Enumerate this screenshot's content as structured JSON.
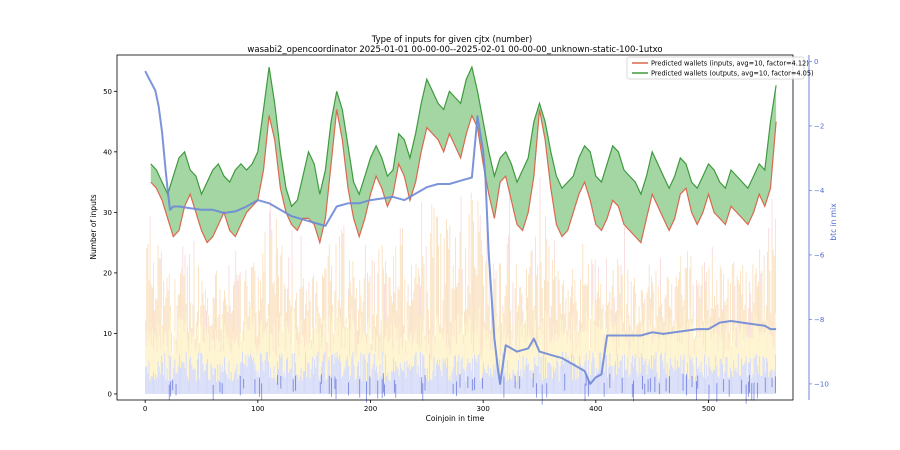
{
  "chart_data": {
    "type": "line",
    "title": "Type of inputs for given cjtx (number)",
    "subtitle": "wasabi2_opencoordinator 2025-01-01 00-00-00--2025-02-01 00-00-00_unknown-static-100-1utxo",
    "xlabel": "Coinjoin in time",
    "ylabel": "Number of inputs",
    "ylabel_right": "btc in mix",
    "xlim": [
      -25,
      575
    ],
    "ylim": [
      -1,
      56
    ],
    "ylim_right": [
      -10.5,
      0.2
    ],
    "xticks": [
      0,
      100,
      200,
      300,
      400,
      500
    ],
    "yticks": [
      0,
      10,
      20,
      30,
      40,
      50
    ],
    "yticks_right": [
      0,
      -2,
      -4,
      -6,
      -8,
      -10
    ],
    "right_tick_labels": [
      "0",
      "−2",
      "−4",
      "−6",
      "−8",
      "−10"
    ],
    "legend_position": "top-right",
    "colors": {
      "inputs": "#d9694f",
      "outputs": "#3f9a3f",
      "fill": "#58b458",
      "btc": "#6d88d6",
      "orange_bars": "#f6c98c",
      "yellow_bars": "#fbeaa0",
      "blue_bars": "#9aa6ee",
      "pink_bars": "#f2b7bd"
    },
    "series": [
      {
        "name": "Predicted wallets (inputs, avg=10, factor=4.12)",
        "x": [
          5,
          10,
          15,
          20,
          25,
          30,
          35,
          40,
          45,
          50,
          55,
          60,
          65,
          70,
          75,
          80,
          85,
          90,
          95,
          100,
          105,
          110,
          115,
          120,
          125,
          130,
          135,
          140,
          145,
          150,
          155,
          160,
          165,
          170,
          175,
          180,
          185,
          190,
          195,
          200,
          205,
          210,
          215,
          220,
          225,
          230,
          235,
          240,
          245,
          250,
          255,
          260,
          265,
          270,
          275,
          280,
          285,
          290,
          295,
          300,
          305,
          310,
          315,
          320,
          325,
          330,
          335,
          340,
          345,
          350,
          355,
          360,
          365,
          370,
          375,
          380,
          385,
          390,
          395,
          400,
          405,
          410,
          415,
          420,
          425,
          430,
          435,
          440,
          445,
          450,
          455,
          460,
          465,
          470,
          475,
          480,
          485,
          490,
          495,
          500,
          505,
          510,
          515,
          520,
          525,
          530,
          535,
          540,
          545,
          550,
          555,
          560
        ],
        "values": [
          35,
          34,
          32,
          29,
          26,
          27,
          31,
          33,
          30,
          27,
          25,
          26,
          28,
          30,
          27,
          26,
          28,
          30,
          31,
          32,
          37,
          46,
          42,
          34,
          30,
          28,
          27,
          29,
          29,
          28,
          25,
          29,
          38,
          47,
          42,
          34,
          29,
          26,
          29,
          33,
          36,
          34,
          31,
          33,
          38,
          36,
          32,
          35,
          40,
          44,
          43,
          42,
          40,
          43,
          41,
          39,
          43,
          46,
          44,
          38,
          33,
          29,
          35,
          36,
          32,
          28,
          27,
          30,
          36,
          47,
          42,
          34,
          28,
          26,
          27,
          30,
          33,
          35,
          32,
          28,
          27,
          29,
          32,
          31,
          28,
          27,
          26,
          25,
          29,
          33,
          31,
          29,
          27,
          29,
          33,
          34,
          30,
          28,
          30,
          33,
          30,
          29,
          28,
          31,
          30,
          29,
          28,
          30,
          33,
          31,
          34,
          45
        ]
      },
      {
        "name": "Predicted wallets (outputs, avg=10, factor=4.05)",
        "x": [
          5,
          10,
          15,
          20,
          25,
          30,
          35,
          40,
          45,
          50,
          55,
          60,
          65,
          70,
          75,
          80,
          85,
          90,
          95,
          100,
          105,
          110,
          115,
          120,
          125,
          130,
          135,
          140,
          145,
          150,
          155,
          160,
          165,
          170,
          175,
          180,
          185,
          190,
          195,
          200,
          205,
          210,
          215,
          220,
          225,
          230,
          235,
          240,
          245,
          250,
          255,
          260,
          265,
          270,
          275,
          280,
          285,
          290,
          295,
          300,
          305,
          310,
          315,
          320,
          325,
          330,
          335,
          340,
          345,
          350,
          355,
          360,
          365,
          370,
          375,
          380,
          385,
          390,
          395,
          400,
          405,
          410,
          415,
          420,
          425,
          430,
          435,
          440,
          445,
          450,
          455,
          460,
          465,
          470,
          475,
          480,
          485,
          490,
          495,
          500,
          505,
          510,
          515,
          520,
          525,
          530,
          535,
          540,
          545,
          550,
          555,
          560
        ],
        "values": [
          38,
          37,
          35,
          33,
          36,
          39,
          40,
          37,
          36,
          33,
          35,
          37,
          38,
          36,
          35,
          37,
          38,
          37,
          38,
          40,
          47,
          54,
          48,
          40,
          34,
          31,
          32,
          36,
          40,
          38,
          33,
          37,
          45,
          50,
          47,
          41,
          35,
          33,
          36,
          39,
          41,
          39,
          36,
          37,
          43,
          42,
          39,
          43,
          48,
          52,
          50,
          48,
          47,
          50,
          49,
          48,
          52,
          54,
          50,
          45,
          40,
          36,
          39,
          40,
          38,
          35,
          37,
          39,
          45,
          48,
          45,
          40,
          36,
          34,
          35,
          36,
          39,
          41,
          40,
          36,
          35,
          38,
          41,
          40,
          37,
          36,
          35,
          33,
          36,
          40,
          38,
          36,
          34,
          36,
          39,
          38,
          35,
          34,
          36,
          38,
          37,
          35,
          34,
          37,
          36,
          35,
          34,
          36,
          38,
          37,
          45,
          51
        ]
      },
      {
        "name": "btc in mix",
        "x": [
          0,
          3,
          6,
          9,
          12,
          15,
          18,
          20,
          22,
          25,
          30,
          40,
          50,
          60,
          70,
          80,
          90,
          100,
          110,
          120,
          130,
          140,
          150,
          160,
          170,
          180,
          190,
          200,
          210,
          220,
          230,
          240,
          250,
          260,
          270,
          280,
          290,
          295,
          300,
          302,
          305,
          310,
          313,
          315,
          320,
          330,
          340,
          345,
          350,
          360,
          370,
          380,
          390,
          395,
          400,
          405,
          410,
          420,
          430,
          440,
          450,
          460,
          470,
          480,
          490,
          500,
          510,
          520,
          530,
          540,
          550,
          555,
          560
        ],
        "values": [
          -0.3,
          -0.5,
          -0.7,
          -0.9,
          -1.4,
          -2.2,
          -3.3,
          -4.0,
          -4.6,
          -4.5,
          -4.5,
          -4.55,
          -4.6,
          -4.6,
          -4.7,
          -4.65,
          -4.5,
          -4.3,
          -4.4,
          -4.6,
          -4.8,
          -4.9,
          -5.0,
          -5.1,
          -4.5,
          -4.4,
          -4.4,
          -4.3,
          -4.25,
          -4.2,
          -4.3,
          -4.1,
          -3.9,
          -3.8,
          -3.8,
          -3.7,
          -3.6,
          -1.7,
          -2.8,
          -3.6,
          -6.0,
          -8.6,
          -9.5,
          -10.0,
          -8.8,
          -9.0,
          -8.9,
          -8.6,
          -9.0,
          -9.1,
          -9.2,
          -9.4,
          -9.6,
          -10.0,
          -9.8,
          -9.7,
          -8.5,
          -8.5,
          -8.5,
          -8.5,
          -8.4,
          -8.45,
          -8.4,
          -8.35,
          -8.3,
          -8.3,
          -8.1,
          -8.05,
          -8.1,
          -8.15,
          -8.2,
          -8.3,
          -8.3
        ]
      }
    ]
  }
}
